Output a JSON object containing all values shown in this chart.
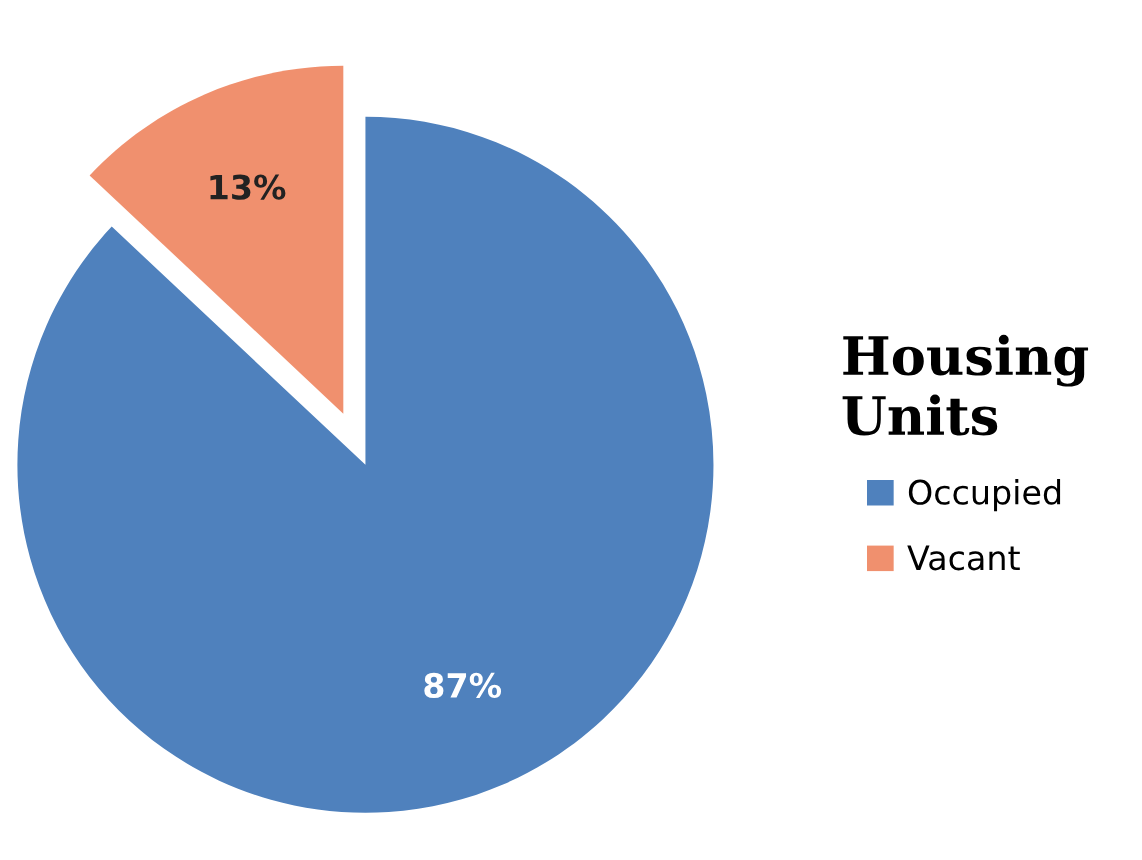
{
  "chart_data": {
    "type": "pie",
    "legend_title": "Housing Units",
    "categories": [
      "Occupied",
      "Vacant"
    ],
    "values": [
      87,
      13
    ],
    "colors": [
      "#4f81bd",
      "#f0906e"
    ],
    "value_labels": [
      "87%",
      "13%"
    ],
    "legend": "right"
  }
}
